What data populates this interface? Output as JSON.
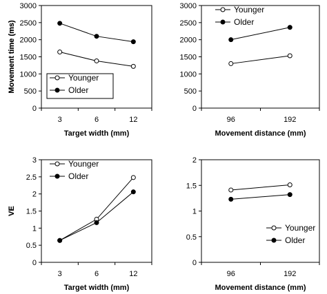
{
  "chart_data": [
    {
      "type": "line",
      "xlabel": "Target width (mm)",
      "ylabel": "Movement time (ms)",
      "categories": [
        "3",
        "6",
        "12"
      ],
      "ylim": [
        0,
        3000
      ],
      "yticks": [
        "0",
        "500",
        "1000",
        "1500",
        "2000",
        "2500",
        "3000"
      ],
      "legend_position": "bottom-left",
      "legend_boxed": true,
      "series": [
        {
          "name": "Younger",
          "marker": "open-circle",
          "values": [
            1640,
            1380,
            1220
          ]
        },
        {
          "name": "Older",
          "marker": "filled-circle",
          "values": [
            2480,
            2100,
            1940
          ]
        }
      ]
    },
    {
      "type": "line",
      "xlabel": "Movement distance (mm)",
      "ylabel": "Movement time (ms)",
      "categories": [
        "96",
        "192"
      ],
      "ylim": [
        0,
        3000
      ],
      "yticks": [
        "0",
        "500",
        "1000",
        "1500",
        "2000",
        "2500",
        "3000"
      ],
      "legend_position": "top-left",
      "legend_boxed": false,
      "series": [
        {
          "name": "Younger",
          "marker": "open-circle",
          "values": [
            1300,
            1530
          ]
        },
        {
          "name": "Older",
          "marker": "filled-circle",
          "values": [
            2000,
            2360
          ]
        }
      ]
    },
    {
      "type": "line",
      "xlabel": "Target width (mm)",
      "ylabel": "VE",
      "categories": [
        "3",
        "6",
        "12"
      ],
      "ylim": [
        0,
        3
      ],
      "yticks": [
        "0",
        "0.5",
        "1",
        "1.5",
        "2",
        "2.5",
        "3"
      ],
      "legend_position": "top-left",
      "legend_boxed": false,
      "series": [
        {
          "name": "Younger",
          "marker": "open-circle",
          "values": [
            0.64,
            1.26,
            2.48
          ]
        },
        {
          "name": "Older",
          "marker": "filled-circle",
          "values": [
            0.64,
            1.16,
            2.06
          ]
        }
      ]
    },
    {
      "type": "line",
      "xlabel": "Movement distance (mm)",
      "ylabel": "VE",
      "categories": [
        "96",
        "192"
      ],
      "ylim": [
        0,
        2
      ],
      "yticks": [
        "0",
        "0.5",
        "1",
        "1.5",
        "2"
      ],
      "legend_position": "bottom-right",
      "legend_boxed": false,
      "series": [
        {
          "name": "Younger",
          "marker": "open-circle",
          "values": [
            1.41,
            1.51
          ]
        },
        {
          "name": "Older",
          "marker": "filled-circle",
          "values": [
            1.23,
            1.32
          ]
        }
      ]
    }
  ]
}
